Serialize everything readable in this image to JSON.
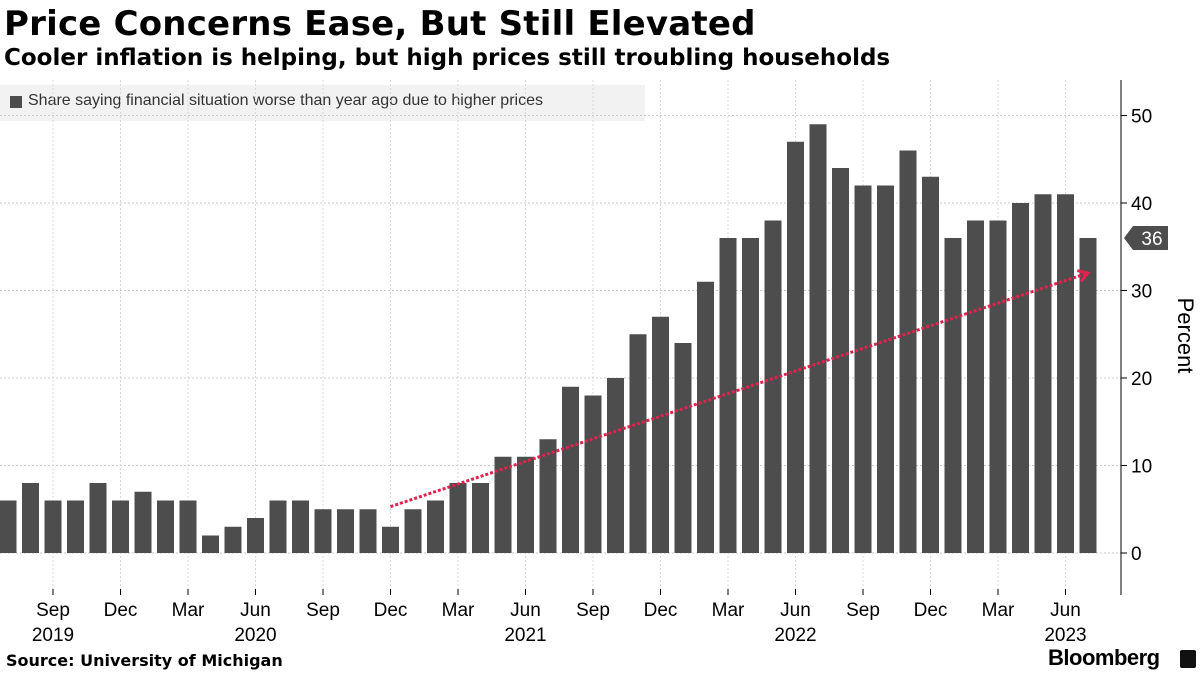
{
  "header": {
    "title": "Price Concerns Ease, But Still Elevated",
    "subtitle": "Cooler inflation is helping, but high prices still troubling households"
  },
  "footer": {
    "source": "Source: University of Michigan",
    "brand": "Bloomberg"
  },
  "colors": {
    "bar": "#4d4d4d",
    "trend_arrow": "#e0234e",
    "last_value_tag": "#4d4d4d",
    "legend_bg": "#f2f2f2"
  },
  "chart_data": {
    "type": "bar",
    "legend": [
      "Share saying financial situation worse than year ago due to higher prices"
    ],
    "ylabel": "Percent",
    "ylim": [
      -5,
      54
    ],
    "yticks": [
      0,
      10,
      20,
      30,
      40,
      50
    ],
    "grid": true,
    "legend_position": "top-left",
    "y_axis_side": "right",
    "categories": [
      "2019-07",
      "2019-08",
      "2019-09",
      "2019-10",
      "2019-11",
      "2019-12",
      "2020-01",
      "2020-02",
      "2020-03",
      "2020-04",
      "2020-05",
      "2020-06",
      "2020-07",
      "2020-08",
      "2020-09",
      "2020-10",
      "2020-11",
      "2020-12",
      "2021-01",
      "2021-02",
      "2021-03",
      "2021-04",
      "2021-05",
      "2021-06",
      "2021-07",
      "2021-08",
      "2021-09",
      "2021-10",
      "2021-11",
      "2021-12",
      "2022-01",
      "2022-02",
      "2022-03",
      "2022-04",
      "2022-05",
      "2022-06",
      "2022-07",
      "2022-08",
      "2022-09",
      "2022-10",
      "2022-11",
      "2022-12",
      "2023-01",
      "2023-02",
      "2023-03",
      "2023-04",
      "2023-05",
      "2023-06",
      "2023-07"
    ],
    "series": [
      {
        "name": "Share saying financial situation worse than year ago due to higher prices",
        "values": [
          6,
          8,
          6,
          6,
          8,
          6,
          7,
          6,
          6,
          2,
          3,
          4,
          6,
          6,
          5,
          5,
          5,
          3,
          5,
          6,
          8,
          8,
          11,
          11,
          13,
          19,
          18,
          20,
          25,
          27,
          24,
          31,
          36,
          36,
          38,
          47,
          49,
          44,
          42,
          42,
          46,
          43,
          36,
          38,
          38,
          40,
          41,
          41,
          36
        ]
      }
    ],
    "month_ticks": [
      {
        "category": "2019-09",
        "label": "Sep"
      },
      {
        "category": "2019-12",
        "label": "Dec"
      },
      {
        "category": "2020-03",
        "label": "Mar"
      },
      {
        "category": "2020-06",
        "label": "Jun"
      },
      {
        "category": "2020-09",
        "label": "Sep"
      },
      {
        "category": "2020-12",
        "label": "Dec"
      },
      {
        "category": "2021-03",
        "label": "Mar"
      },
      {
        "category": "2021-06",
        "label": "Jun"
      },
      {
        "category": "2021-09",
        "label": "Sep"
      },
      {
        "category": "2021-12",
        "label": "Dec"
      },
      {
        "category": "2022-03",
        "label": "Mar"
      },
      {
        "category": "2022-06",
        "label": "Jun"
      },
      {
        "category": "2022-09",
        "label": "Sep"
      },
      {
        "category": "2022-12",
        "label": "Dec"
      },
      {
        "category": "2023-03",
        "label": "Mar"
      },
      {
        "category": "2023-06",
        "label": "Jun"
      }
    ],
    "year_ticks": [
      {
        "category": "2019-09",
        "label": "2019"
      },
      {
        "category": "2020-06",
        "label": "2020"
      },
      {
        "category": "2021-06",
        "label": "2021"
      },
      {
        "category": "2022-06",
        "label": "2022"
      },
      {
        "category": "2023-06",
        "label": "2023"
      }
    ],
    "last_value_label": "36",
    "trend_arrow": {
      "from": {
        "category": "2020-12",
        "y": 5.3
      },
      "to": {
        "category": "2023-07",
        "y": 32
      }
    }
  }
}
